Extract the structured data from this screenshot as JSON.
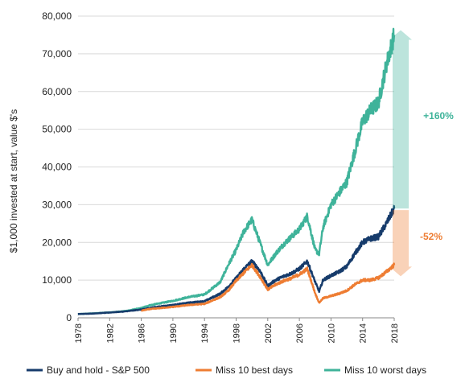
{
  "chart_data": {
    "type": "line",
    "title": "",
    "xlabel": "",
    "ylabel": "$1,000 invested at start, value $'s",
    "xlim": [
      1978,
      2018
    ],
    "ylim": [
      0,
      80000
    ],
    "yticks": [
      0,
      10000,
      20000,
      30000,
      40000,
      50000,
      60000,
      70000,
      80000
    ],
    "ytick_labels": [
      "0",
      "10,000",
      "20,000",
      "30,000",
      "40,000",
      "50,000",
      "60,000",
      "70,000",
      "80,000"
    ],
    "xtick_labels": [
      "1978",
      "1982",
      "1986",
      "1990",
      "1994",
      "1998",
      "2002",
      "2006",
      "2010",
      "2014",
      "2018"
    ],
    "grid": "horizontal",
    "legend_position": "bottom",
    "series": [
      {
        "name": "Miss 10 worst days",
        "color": "#3fb39a",
        "x": [
          1978,
          1980,
          1982,
          1984,
          1986,
          1987,
          1988,
          1990,
          1992,
          1994,
          1996,
          1997,
          1998,
          1999,
          2000,
          2001,
          2002,
          2003,
          2004,
          2005,
          2006,
          2007,
          2008,
          2008.5,
          2009,
          2010,
          2011,
          2012,
          2013,
          2014,
          2015,
          2016,
          2017,
          2018
        ],
        "y": [
          1000,
          1200,
          1450,
          1800,
          2600,
          3300,
          3700,
          4500,
          5500,
          6200,
          9500,
          14000,
          18000,
          23000,
          26000,
          20000,
          14000,
          17000,
          19500,
          21500,
          23500,
          27000,
          18000,
          17000,
          24000,
          30000,
          33000,
          36000,
          44000,
          52000,
          55000,
          57000,
          67000,
          75000
        ]
      },
      {
        "name": "Buy and hold - S&P 500",
        "color": "#163b6b",
        "x": [
          1978,
          1980,
          1982,
          1984,
          1986,
          1987,
          1988,
          1990,
          1992,
          1994,
          1996,
          1997,
          1998,
          1999,
          2000,
          2001,
          2002,
          2003,
          2004,
          2005,
          2006,
          2007,
          2008,
          2008.5,
          2009,
          2010,
          2011,
          2012,
          2013,
          2014,
          2015,
          2016,
          2017,
          2018
        ],
        "y": [
          1000,
          1150,
          1400,
          1700,
          2200,
          2600,
          2900,
          3400,
          4000,
          4400,
          6400,
          8200,
          10500,
          13000,
          15000,
          12500,
          8500,
          10000,
          11000,
          11800,
          13000,
          15000,
          9500,
          7000,
          10000,
          11200,
          12200,
          13600,
          17000,
          20000,
          21000,
          21500,
          25000,
          29000
        ]
      },
      {
        "name": "Miss 10 best days",
        "color": "#ee7d33",
        "x": [
          1986,
          1987,
          1988,
          1990,
          1992,
          1994,
          1996,
          1997,
          1998,
          1999,
          2000,
          2001,
          2002,
          2003,
          2004,
          2005,
          2006,
          2007,
          2008,
          2008.5,
          2009,
          2010,
          2011,
          2012,
          2013,
          2014,
          2015,
          2016,
          2017,
          2018
        ],
        "y": [
          1900,
          2300,
          2500,
          2900,
          3400,
          3700,
          5500,
          7200,
          9800,
          12000,
          14000,
          11000,
          7500,
          8800,
          9800,
          10500,
          11500,
          13000,
          6500,
          4000,
          5200,
          5800,
          6400,
          7200,
          8800,
          10000,
          10000,
          10600,
          12200,
          14000
        ]
      }
    ],
    "annotations": [
      {
        "text": "+160%",
        "color": "#3fb39a",
        "from": 29000,
        "to": 75000
      },
      {
        "text": "-52%",
        "color": "#ee7d33",
        "from": 29000,
        "to": 14000
      }
    ]
  }
}
